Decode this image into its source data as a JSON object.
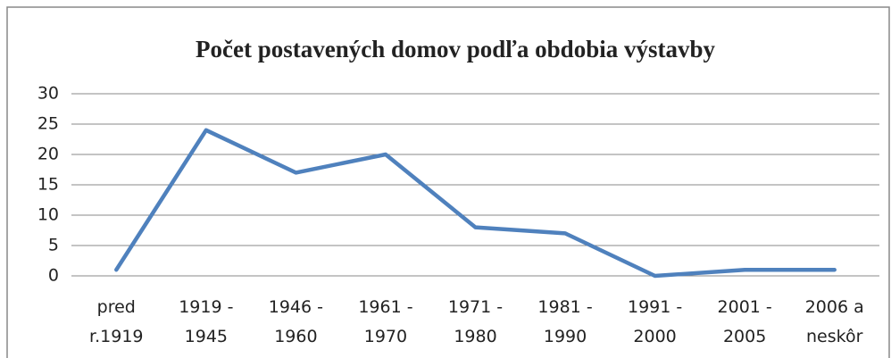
{
  "chart_data": {
    "type": "line",
    "title": "Počet postavených domov podľa obdobia výstavby",
    "categories": [
      "pred\nr.1919",
      "1919 -\n1945",
      "1946 -\n1960",
      "1961 -\n1970",
      "1971 -\n1980",
      "1981 -\n1990",
      "1991 -\n2000",
      "2001 -\n2005",
      "2006 a\nneskôr"
    ],
    "values": [
      1,
      24,
      17,
      20,
      8,
      7,
      0,
      1,
      1
    ],
    "color": "#4f81bd",
    "ylim": [
      0,
      30
    ],
    "yticks": [
      0,
      5,
      10,
      15,
      20,
      25,
      30
    ],
    "grid": true
  }
}
